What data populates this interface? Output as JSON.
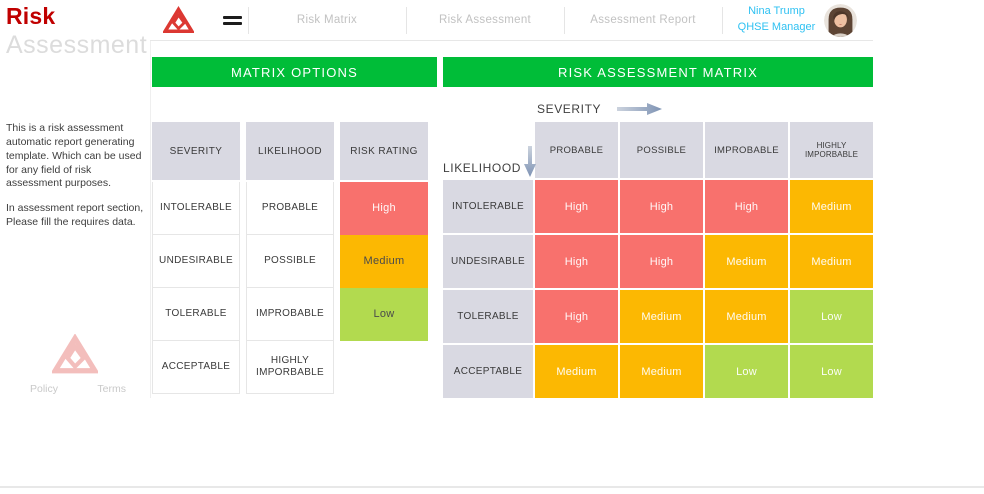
{
  "brand": {
    "title_top": "Risk",
    "title_bottom": "Assessment"
  },
  "nav": {
    "items": [
      {
        "label": "Risk Matrix"
      },
      {
        "label": "Risk Assessment"
      },
      {
        "label": "Assessment Report"
      }
    ],
    "user_name": "Nina Trump",
    "user_role": "QHSE Manager"
  },
  "sidebar": {
    "paragraphs": [
      "This is a risk assessment automatic report generating template. Which can be used for any field of risk assessment purposes.",
      "In assessment report section, Please fill the requires data."
    ],
    "footer_links": [
      {
        "label": "Policy"
      },
      {
        "label": "Terms"
      }
    ]
  },
  "matrix_options": {
    "title": "MATRIX OPTIONS",
    "tables": {
      "severity": {
        "header": "SEVERITY",
        "rows": [
          {
            "label": "INTOLERABLE"
          },
          {
            "label": "UNDESIRABLE"
          },
          {
            "label": "TOLERABLE"
          },
          {
            "label": "ACCEPTABLE"
          }
        ]
      },
      "likelihood": {
        "header": "LIKELIHOOD",
        "rows": [
          {
            "label": "PROBABLE"
          },
          {
            "label": "POSSIBLE"
          },
          {
            "label": "IMPROBABLE"
          },
          {
            "label": "HIGHLY IMPORBABLE"
          }
        ]
      },
      "risk_rating": {
        "header": "RISK RATING",
        "rows": [
          {
            "label": "High",
            "level": "high"
          },
          {
            "label": "Medium",
            "level": "medium"
          },
          {
            "label": "Low",
            "level": "low"
          }
        ]
      }
    }
  },
  "risk_matrix": {
    "title": "RISK ASSESSMENT MATRIX",
    "x_axis_label": "SEVERITY",
    "y_axis_label": "LIKELIHOOD",
    "columns": [
      {
        "label": "PROBABLE"
      },
      {
        "label": "POSSIBLE"
      },
      {
        "label": "IMPROBABLE"
      },
      {
        "label": "HIGHLY IMPORBABLE"
      }
    ],
    "rows": [
      {
        "label": "INTOLERABLE",
        "cells": [
          {
            "label": "High",
            "level": "high"
          },
          {
            "label": "High",
            "level": "high"
          },
          {
            "label": "High",
            "level": "high"
          },
          {
            "label": "Medium",
            "level": "medium"
          }
        ]
      },
      {
        "label": "UNDESIRABLE",
        "cells": [
          {
            "label": "High",
            "level": "high"
          },
          {
            "label": "High",
            "level": "high"
          },
          {
            "label": "Medium",
            "level": "medium"
          },
          {
            "label": "Medium",
            "level": "medium"
          }
        ]
      },
      {
        "label": "TOLERABLE",
        "cells": [
          {
            "label": "High",
            "level": "high"
          },
          {
            "label": "Medium",
            "level": "medium"
          },
          {
            "label": "Medium",
            "level": "medium"
          },
          {
            "label": "Low",
            "level": "low"
          }
        ]
      },
      {
        "label": "ACCEPTABLE",
        "cells": [
          {
            "label": "Medium",
            "level": "medium"
          },
          {
            "label": "Medium",
            "level": "medium"
          },
          {
            "label": "Low",
            "level": "low"
          },
          {
            "label": "Low",
            "level": "low"
          }
        ]
      }
    ]
  },
  "colors": {
    "accent_green": "#00bd38",
    "high": "#f8716d",
    "medium": "#fcb802",
    "low": "#b2da4f",
    "header_cell_bg": "#d9d9e2",
    "brand_red": "#c00000",
    "user_accent": "#2fc1f2"
  }
}
